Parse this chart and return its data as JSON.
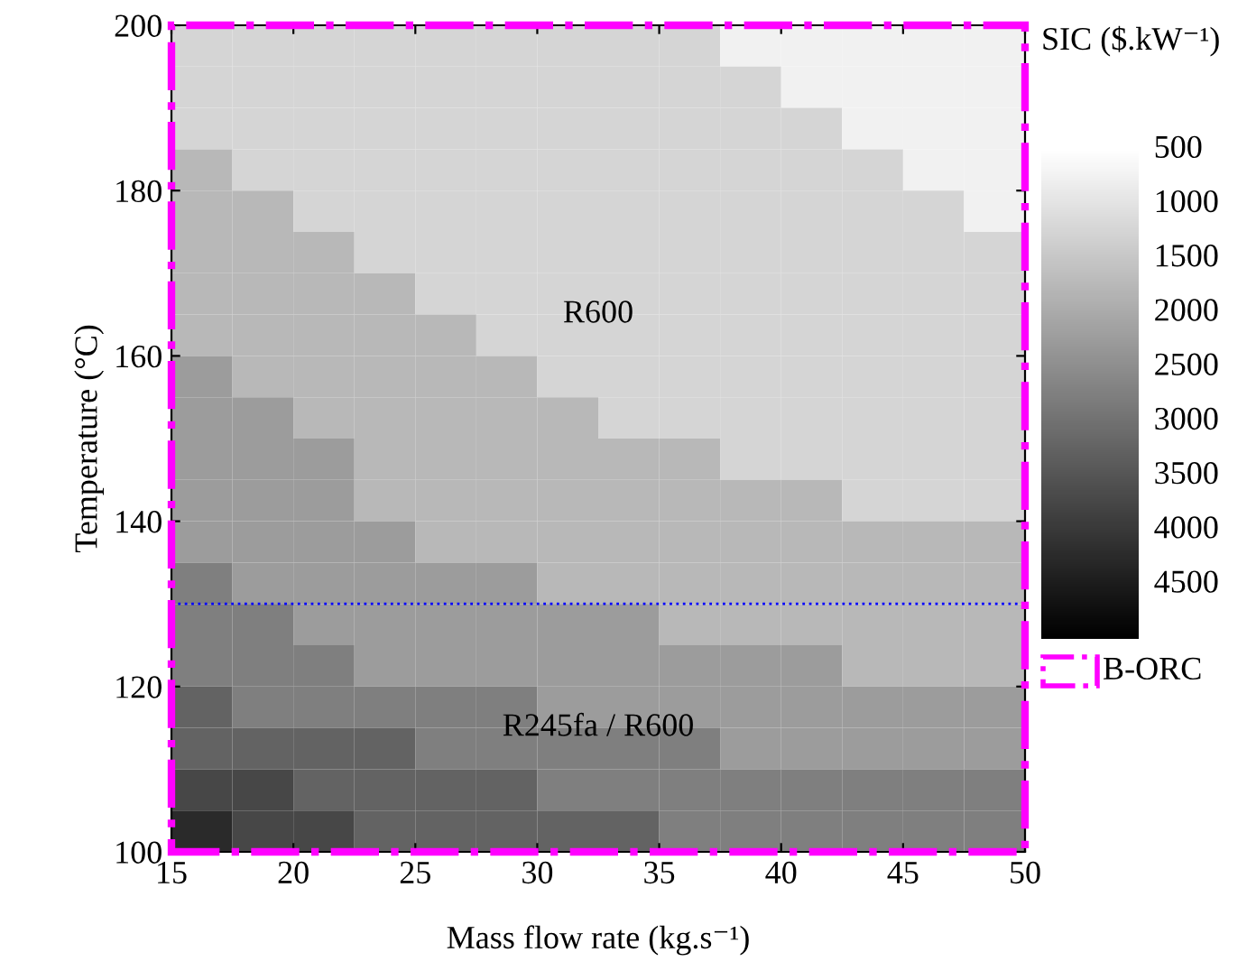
{
  "chart_data": {
    "type": "heatmap",
    "xlabel": "Mass flow rate (kg.s⁻¹)",
    "ylabel": "Temperature (°C)",
    "clabel": "SIC ($.kW⁻¹)",
    "cells": [
      [
        1250,
        1250,
        1250,
        1250,
        1250,
        1250,
        1250,
        1250,
        1250,
        750,
        750,
        750,
        750,
        750
      ],
      [
        1250,
        1250,
        1250,
        1250,
        1250,
        1250,
        1250,
        1250,
        1250,
        1250,
        750,
        750,
        750,
        750
      ],
      [
        1250,
        1250,
        1250,
        1250,
        1250,
        1250,
        1250,
        1250,
        1250,
        1250,
        1250,
        750,
        750,
        750
      ],
      [
        1750,
        1250,
        1250,
        1250,
        1250,
        1250,
        1250,
        1250,
        1250,
        1250,
        1250,
        1250,
        750,
        750
      ],
      [
        1750,
        1750,
        1250,
        1250,
        1250,
        1250,
        1250,
        1250,
        1250,
        1250,
        1250,
        1250,
        1250,
        750
      ],
      [
        1750,
        1750,
        1750,
        1250,
        1250,
        1250,
        1250,
        1250,
        1250,
        1250,
        1250,
        1250,
        1250,
        1250
      ],
      [
        1750,
        1750,
        1750,
        1750,
        1250,
        1250,
        1250,
        1250,
        1250,
        1250,
        1250,
        1250,
        1250,
        1250
      ],
      [
        1750,
        1750,
        1750,
        1750,
        1750,
        1250,
        1250,
        1250,
        1250,
        1250,
        1250,
        1250,
        1250,
        1250
      ],
      [
        2250,
        1750,
        1750,
        1750,
        1750,
        1750,
        1250,
        1250,
        1250,
        1250,
        1250,
        1250,
        1250,
        1250
      ],
      [
        2250,
        2250,
        1750,
        1750,
        1750,
        1750,
        1750,
        1250,
        1250,
        1250,
        1250,
        1250,
        1250,
        1250
      ],
      [
        2250,
        2250,
        2250,
        1750,
        1750,
        1750,
        1750,
        1750,
        1750,
        1250,
        1250,
        1250,
        1250,
        1250
      ],
      [
        2250,
        2250,
        2250,
        1750,
        1750,
        1750,
        1750,
        1750,
        1750,
        1750,
        1750,
        1250,
        1250,
        1250
      ],
      [
        2250,
        2250,
        2250,
        2250,
        1750,
        1750,
        1750,
        1750,
        1750,
        1750,
        1750,
        1750,
        1750,
        1750
      ],
      [
        2750,
        2250,
        2250,
        2250,
        2250,
        2250,
        1750,
        1750,
        1750,
        1750,
        1750,
        1750,
        1750,
        1750
      ],
      [
        2750,
        2750,
        2250,
        2250,
        2250,
        2250,
        2250,
        2250,
        1750,
        1750,
        1750,
        1750,
        1750,
        1750
      ],
      [
        2750,
        2750,
        2750,
        2250,
        2250,
        2250,
        2250,
        2250,
        2250,
        2250,
        2250,
        1750,
        1750,
        1750
      ],
      [
        3250,
        2750,
        2750,
        2750,
        2750,
        2750,
        2250,
        2250,
        2250,
        2250,
        2250,
        2250,
        2250,
        2250
      ],
      [
        3250,
        3250,
        3250,
        3250,
        2750,
        2750,
        2750,
        2750,
        2750,
        2250,
        2250,
        2250,
        2250,
        2250
      ],
      [
        3750,
        3750,
        3250,
        3250,
        3250,
        3250,
        2750,
        2750,
        2750,
        2750,
        2750,
        2750,
        2750,
        2750
      ],
      [
        4250,
        3750,
        3750,
        3250,
        3250,
        3250,
        3250,
        3250,
        2750,
        2750,
        2750,
        2750,
        2750,
        2750
      ]
    ],
    "clim": [
      500,
      5000
    ],
    "cticks": [
      500,
      1000,
      1500,
      2000,
      2500,
      3000,
      3500,
      4000,
      4500
    ],
    "xlim": [
      15,
      50
    ],
    "xticks": [
      15,
      20,
      25,
      30,
      35,
      40,
      45,
      50
    ],
    "ylim": [
      100,
      200
    ],
    "yticks": [
      100,
      120,
      140,
      160,
      180,
      200
    ],
    "annotations": [
      "R600",
      "R245fa / R600",
      "B-ORC"
    ],
    "ref_lines": [
      {
        "axis": "y",
        "value": 130,
        "color": "#0000ff",
        "line_style": "dotted"
      }
    ],
    "grid": false
  }
}
